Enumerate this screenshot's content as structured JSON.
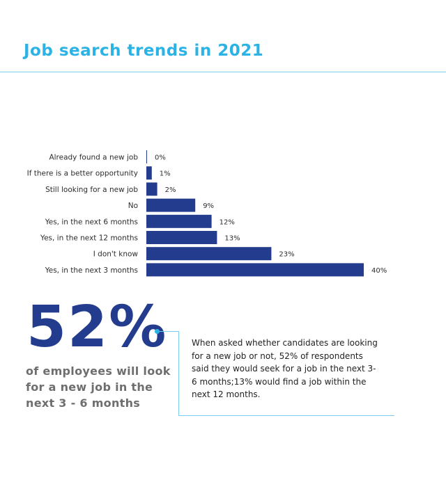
{
  "title": "Job search trends in 2021",
  "colors": {
    "accent": "#2bb3e6",
    "bar": "#233c8e",
    "headline": "#6e6e6e"
  },
  "chart_data": {
    "type": "bar",
    "orientation": "horizontal",
    "categories": [
      "Already found a new job",
      "If there is a better opportunity",
      "Still looking for a new job",
      "No",
      "Yes, in the next 6 months",
      "Yes, in the next 12 months",
      "I don't know",
      "Yes, in the next 3 months"
    ],
    "values": [
      0,
      1,
      2,
      9,
      12,
      13,
      23,
      40
    ],
    "value_labels": [
      "0%",
      "1%",
      "2%",
      "9%",
      "12%",
      "13%",
      "23%",
      "40%"
    ],
    "xlim": [
      0,
      40
    ],
    "grid": false
  },
  "highlight": {
    "big_number": "52%",
    "headline": "of employees will look for a new job in the next 3 - 6 months",
    "description": "When asked whether candidates are looking for a new job or not, 52% of respondents said they would seek for a job in the next 3-6 months;13% would find a job within the next 12 months."
  }
}
